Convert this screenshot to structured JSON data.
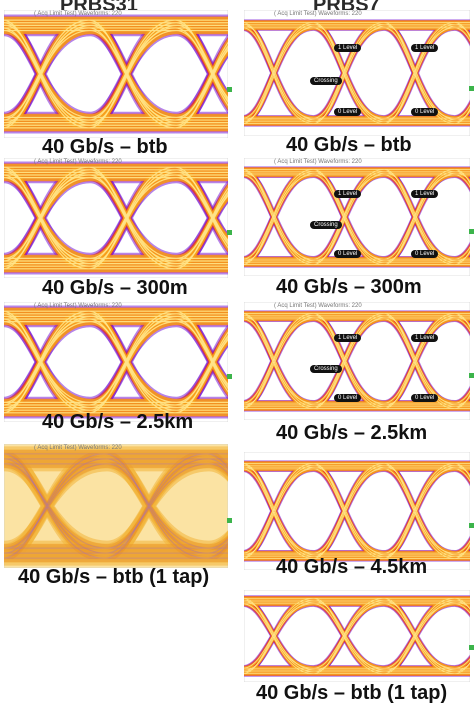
{
  "columns": [
    {
      "title": "PRBS31"
    },
    {
      "title": "PRBS7"
    }
  ],
  "scope_header": "( Acq Limit Test)  Waveforms: 220",
  "panels": [
    {
      "col": 0,
      "caption": "40 Gb/s –  btb",
      "eye": "multi",
      "header": true,
      "labels": []
    },
    {
      "col": 0,
      "caption": "40 Gb/s –  300m",
      "eye": "multi",
      "header": true,
      "labels": []
    },
    {
      "col": 0,
      "caption": "40 Gb/s –  2.5km",
      "eye": "multi",
      "header": true,
      "labels": []
    },
    {
      "col": 0,
      "caption": "40 Gb/s –  btb (1 tap)",
      "eye": "smooth",
      "header": true,
      "labels": []
    },
    {
      "col": 1,
      "caption": "40 Gb/s –  btb",
      "eye": "thin",
      "header": true,
      "labels": [
        "1 Level",
        "1 Level",
        "Crossing",
        "0 Level",
        "0 Level"
      ]
    },
    {
      "col": 1,
      "caption": "40 Gb/s –  300m",
      "eye": "thin",
      "header": true,
      "labels": [
        "1 Level",
        "1 Level",
        "Crossing",
        "0 Level",
        "0 Level"
      ]
    },
    {
      "col": 1,
      "caption": "40 Gb/s –  2.5km",
      "eye": "thin",
      "header": true,
      "labels": [
        "1 Level",
        "1 Level",
        "Crossing",
        "0 Level",
        "0 Level"
      ]
    },
    {
      "col": 1,
      "caption": "40 Gb/s –  4.5km",
      "eye": "thin",
      "header": false,
      "labels": []
    },
    {
      "col": 1,
      "caption": "40 Gb/s –  btb (1 tap)",
      "eye": "thin",
      "header": false,
      "labels": []
    }
  ],
  "colors": {
    "outer": "#7a1fd6",
    "mid": "#e8332a",
    "fill": "#f7a01b",
    "core": "#ffe48a",
    "bg": "#ffffff"
  }
}
